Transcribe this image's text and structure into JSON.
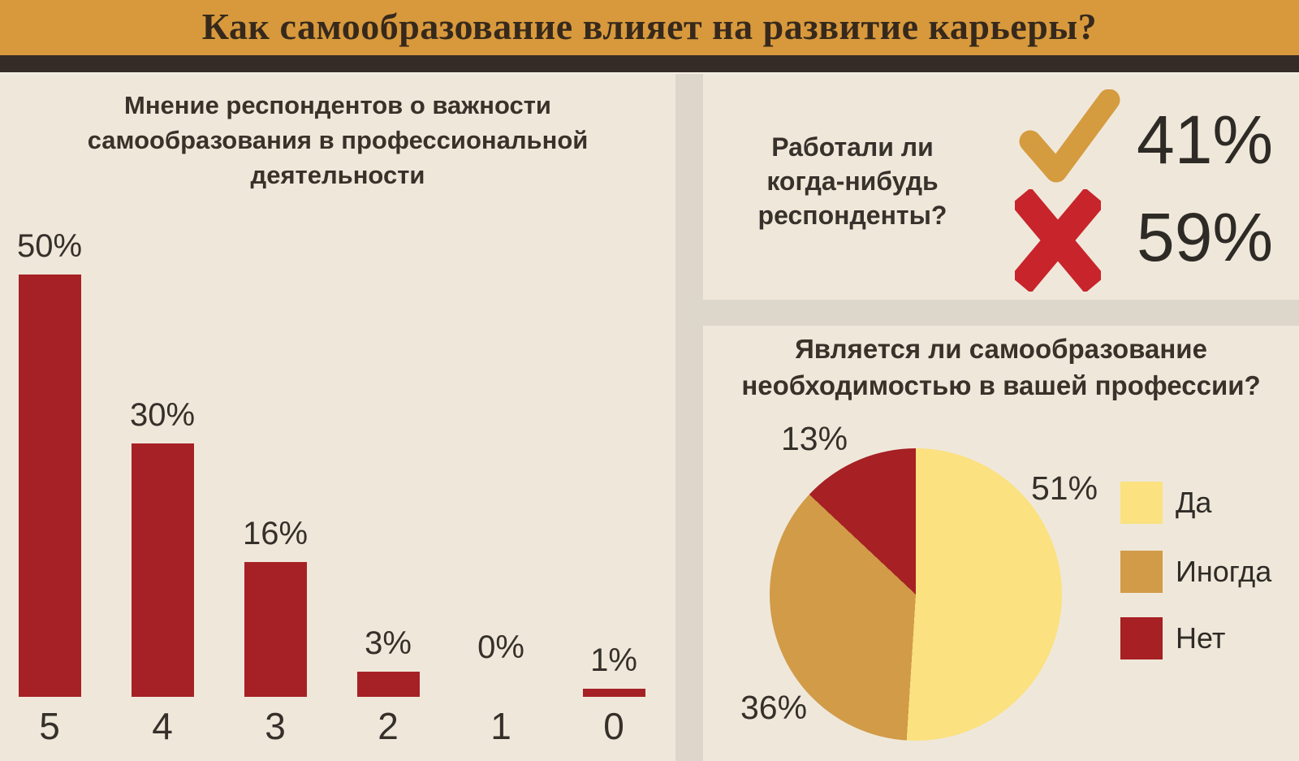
{
  "header": {
    "title": "Как самообразование влияет на развитие карьеры?"
  },
  "work_panel": {
    "question_lines": [
      "Работали ли",
      "когда-нибудь",
      "респонденты?"
    ],
    "yes_value": "41%",
    "no_value": "59%"
  },
  "chart_data": [
    {
      "type": "bar",
      "title": "Мнение респондентов о важности самообразования в профессиональной деятельности",
      "title_lines": [
        "Мнение респондентов о важности",
        "самообразования в профессиональной",
        "деятельности"
      ],
      "categories": [
        "5",
        "4",
        "3",
        "2",
        "1",
        "0"
      ],
      "values": [
        50,
        30,
        16,
        3,
        0,
        1
      ],
      "value_labels": [
        "50%",
        "30%",
        "16%",
        "3%",
        "0%",
        "1%"
      ],
      "bar_color": "#a62126",
      "ylim": [
        0,
        50
      ],
      "grid": false,
      "xlabel": "",
      "ylabel": ""
    },
    {
      "type": "pie",
      "title": "Является ли самообразование необходимостью в вашей профессии?",
      "title_lines": [
        "Является ли самообразование",
        "необходимостью в вашей профессии?"
      ],
      "labels": [
        "Да",
        "Иногда",
        "Нет"
      ],
      "values": [
        51,
        36,
        13
      ],
      "value_labels": [
        "51%",
        "36%",
        "13%"
      ],
      "colors": [
        "#fbe180",
        "#d19b48",
        "#a62024"
      ],
      "start_angle_deg": 0,
      "direction": "clockwise",
      "legend_position": "right"
    }
  ],
  "colors": {
    "page_background": "#ddd6cb",
    "panel_background": "#efe8da",
    "header_background": "#d8993c",
    "header_text": "#36291c",
    "divider_bar": "#352c27",
    "text_dark": "#2e2a25",
    "bar_red": "#a62126",
    "check_gold": "#d59b3f",
    "cross_red": "#c8242b",
    "pie_yellow": "#fbe180",
    "pie_gold": "#d19b48",
    "pie_red": "#a62024"
  }
}
